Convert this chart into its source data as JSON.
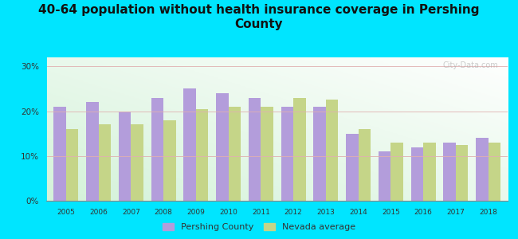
{
  "title": "40-64 population without health insurance coverage in Pershing\nCounty",
  "years": [
    2005,
    2006,
    2007,
    2008,
    2009,
    2010,
    2011,
    2012,
    2013,
    2014,
    2015,
    2016,
    2017,
    2018
  ],
  "pershing": [
    21,
    22,
    20,
    23,
    25,
    24,
    23,
    21,
    21,
    15,
    11,
    12,
    13,
    14
  ],
  "nevada": [
    16,
    17,
    17,
    18,
    20.5,
    21,
    21,
    23,
    22.5,
    16,
    13,
    13,
    12.5,
    13
  ],
  "pershing_color": "#b39ddb",
  "nevada_color": "#c5d588",
  "background_outer": "#00e5ff",
  "ylim": [
    0,
    32
  ],
  "yticks": [
    0,
    10,
    20,
    30
  ],
  "ytick_labels": [
    "0%",
    "10%",
    "20%",
    "30%"
  ],
  "title_fontsize": 11,
  "watermark": "City-Data.com",
  "legend_pershing": "Pershing County",
  "legend_nevada": "Nevada average",
  "bar_width": 0.38
}
